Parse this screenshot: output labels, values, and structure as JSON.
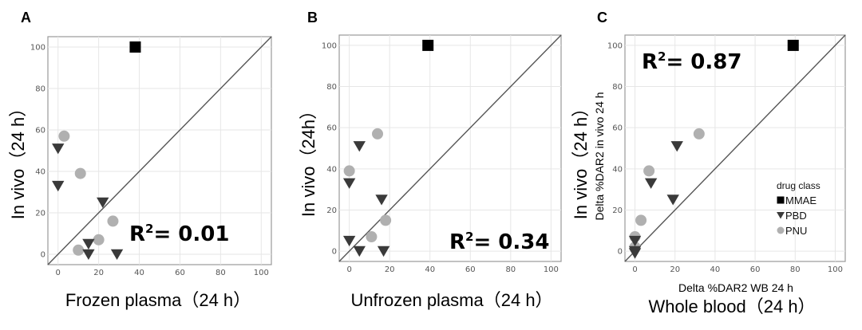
{
  "chart_data": [
    {
      "type": "scatter",
      "panel": "A",
      "xlabel": "Frozen plasma（24 h）",
      "ylabel": "In vivo（24 h）",
      "xlim": [
        -5,
        105
      ],
      "ylim": [
        -5,
        105
      ],
      "xticks": [
        "0",
        "20",
        "40",
        "60",
        "80",
        "100"
      ],
      "yticks": [
        "0",
        "20",
        "40",
        "60",
        "80",
        "100"
      ],
      "grid": true,
      "identity_line": true,
      "annotation": {
        "prefix": "R",
        "sup": "2",
        "text": "= 0.01"
      },
      "series": [
        {
          "name": "MMAE",
          "marker": "square",
          "color": "#000000",
          "points": [
            [
              38,
              100
            ]
          ]
        },
        {
          "name": "PBD",
          "marker": "triangle-down",
          "color": "#3a3a3a",
          "points": [
            [
              0,
              51
            ],
            [
              0,
              33
            ],
            [
              22,
              25
            ],
            [
              15,
              5
            ],
            [
              15,
              0
            ],
            [
              29,
              0
            ]
          ]
        },
        {
          "name": "PNU",
          "marker": "circle",
          "color": "#b0b0b0",
          "points": [
            [
              3,
              57
            ],
            [
              11,
              39
            ],
            [
              27,
              16
            ],
            [
              20,
              7
            ],
            [
              10,
              2
            ]
          ]
        }
      ]
    },
    {
      "type": "scatter",
      "panel": "B",
      "xlabel": "Unfrozen plasma（24 h）",
      "ylabel": "In vivo（24h）",
      "xlim": [
        -5,
        105
      ],
      "ylim": [
        -5,
        105
      ],
      "xticks": [
        "0",
        "20",
        "40",
        "60",
        "80",
        "100"
      ],
      "yticks": [
        "0",
        "20",
        "40",
        "60",
        "80",
        "100"
      ],
      "grid": true,
      "identity_line": true,
      "annotation": {
        "prefix": "R",
        "sup": "2",
        "text": "= 0.34"
      },
      "series": [
        {
          "name": "MMAE",
          "marker": "square",
          "color": "#000000",
          "points": [
            [
              39,
              100
            ]
          ]
        },
        {
          "name": "PBD",
          "marker": "triangle-down",
          "color": "#3a3a3a",
          "points": [
            [
              5,
              51
            ],
            [
              0,
              33
            ],
            [
              16,
              25
            ],
            [
              0,
              5
            ],
            [
              5,
              0
            ],
            [
              17,
              0
            ]
          ]
        },
        {
          "name": "PNU",
          "marker": "circle",
          "color": "#b0b0b0",
          "points": [
            [
              14,
              57
            ],
            [
              0,
              39
            ],
            [
              18,
              15
            ],
            [
              11,
              7
            ]
          ]
        }
      ]
    },
    {
      "type": "scatter",
      "panel": "C",
      "xlabel": "Whole blood（24 h）",
      "ylabel": "In vivo（24 h）",
      "inner_xlabel": "Delta %DAR2 WB 24 h",
      "inner_ylabel": "Delta %DAR2 in vivo 24 h",
      "xlim": [
        -5,
        105
      ],
      "ylim": [
        -5,
        105
      ],
      "xticks": [
        "0",
        "20",
        "40",
        "60",
        "80",
        "100"
      ],
      "yticks": [
        "0",
        "20",
        "40",
        "60",
        "80",
        "100"
      ],
      "grid": true,
      "identity_line": true,
      "annotation": {
        "prefix": "R",
        "sup": "2",
        "text": "= 0.87"
      },
      "legend": {
        "title": "drug class",
        "position": "bottom-right",
        "items": [
          "MMAE",
          "PBD",
          "PNU"
        ]
      },
      "series": [
        {
          "name": "MMAE",
          "marker": "square",
          "color": "#000000",
          "points": [
            [
              79,
              100
            ]
          ]
        },
        {
          "name": "PBD",
          "marker": "triangle-down",
          "color": "#3a3a3a",
          "points": [
            [
              21,
              51
            ],
            [
              8,
              33
            ],
            [
              19,
              25
            ],
            [
              0,
              5
            ],
            [
              0,
              0
            ],
            [
              0,
              -1
            ]
          ]
        },
        {
          "name": "PNU",
          "marker": "circle",
          "color": "#b0b0b0",
          "points": [
            [
              32,
              57
            ],
            [
              7,
              39
            ],
            [
              3,
              15
            ],
            [
              0,
              7
            ],
            [
              0,
              2
            ]
          ]
        }
      ]
    }
  ]
}
